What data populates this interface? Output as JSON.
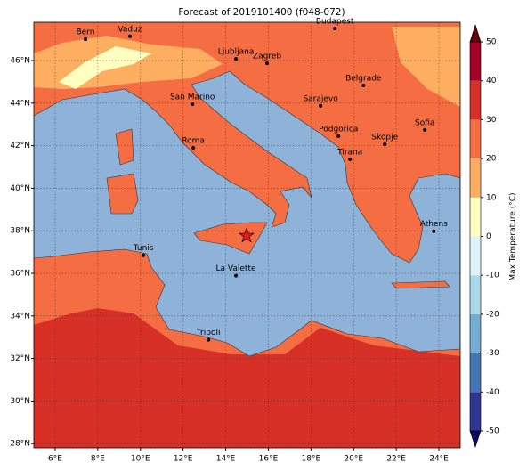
{
  "title": "Forecast of 2019101400 (f048-072)",
  "map": {
    "xlim": [
      5,
      25
    ],
    "ylim": [
      27.8,
      47.8
    ],
    "grid": true,
    "xticks": [
      {
        "value": 6,
        "label": "6°E"
      },
      {
        "value": 8,
        "label": "8°E"
      },
      {
        "value": 10,
        "label": "10°E"
      },
      {
        "value": 12,
        "label": "12°E"
      },
      {
        "value": 14,
        "label": "14°E"
      },
      {
        "value": 16,
        "label": "16°E"
      },
      {
        "value": 18,
        "label": "18°E"
      },
      {
        "value": 20,
        "label": "20°E"
      },
      {
        "value": 22,
        "label": "22°E"
      },
      {
        "value": 24,
        "label": "24°E"
      }
    ],
    "yticks": [
      {
        "value": 28,
        "label": "28°N"
      },
      {
        "value": 30,
        "label": "30°N"
      },
      {
        "value": 32,
        "label": "32°N"
      },
      {
        "value": 34,
        "label": "34°N"
      },
      {
        "value": 36,
        "label": "36°N"
      },
      {
        "value": 38,
        "label": "38°N"
      },
      {
        "value": 40,
        "label": "40°N"
      },
      {
        "value": 42,
        "label": "42°N"
      },
      {
        "value": 44,
        "label": "44°N"
      },
      {
        "value": 46,
        "label": "46°N"
      }
    ],
    "cities": [
      {
        "name": "Bern",
        "lon": 7.42,
        "lat": 47.0
      },
      {
        "name": "Vaduz",
        "lon": 9.51,
        "lat": 47.14
      },
      {
        "name": "Budapest",
        "lon": 19.12,
        "lat": 47.5
      },
      {
        "name": "Ljubljana",
        "lon": 14.48,
        "lat": 46.08
      },
      {
        "name": "Zagreb",
        "lon": 15.94,
        "lat": 45.87
      },
      {
        "name": "Belgrade",
        "lon": 20.46,
        "lat": 44.83
      },
      {
        "name": "San Marino",
        "lon": 12.44,
        "lat": 43.95
      },
      {
        "name": "Sarajevo",
        "lon": 18.45,
        "lat": 43.87
      },
      {
        "name": "Sofia",
        "lon": 23.34,
        "lat": 42.74
      },
      {
        "name": "Podgorica",
        "lon": 19.29,
        "lat": 42.45
      },
      {
        "name": "Skopje",
        "lon": 21.46,
        "lat": 42.07
      },
      {
        "name": "Roma",
        "lon": 12.48,
        "lat": 41.9
      },
      {
        "name": "Tirana",
        "lon": 19.83,
        "lat": 41.36
      },
      {
        "name": "Athens",
        "lon": 23.76,
        "lat": 37.98
      },
      {
        "name": "Tunis",
        "lon": 10.14,
        "lat": 36.85
      },
      {
        "name": "La Valette",
        "lon": 14.48,
        "lat": 35.89
      },
      {
        "name": "Tripoli",
        "lon": 13.19,
        "lat": 32.88
      }
    ],
    "marker": {
      "lon": 14.98,
      "lat": 37.77,
      "color": "#e31a1c"
    }
  },
  "colorbar": {
    "label": "Max Temperature (°C)",
    "ticks": [
      -50,
      -40,
      -30,
      -20,
      -10,
      0,
      10,
      20,
      30,
      40,
      50
    ],
    "colors": [
      "#313695",
      "#4575b4",
      "#74add1",
      "#abd9e9",
      "#e0f3f8",
      "#ffffbf",
      "#fdae61",
      "#f46d43",
      "#d73027",
      "#a50026"
    ],
    "extend_colors": [
      "#0c0c5a",
      "#67000d"
    ]
  }
}
